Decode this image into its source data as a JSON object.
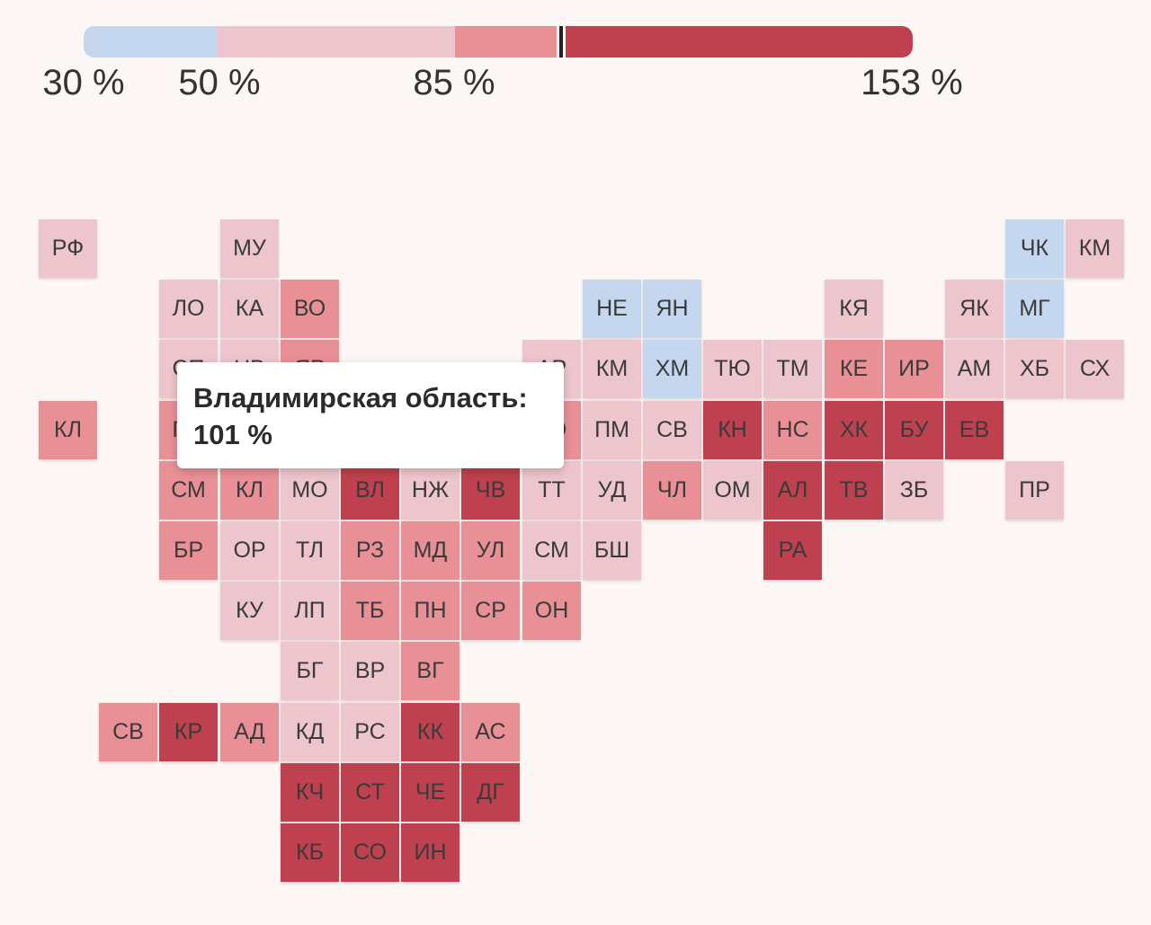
{
  "legend": {
    "labels": [
      "30 %",
      "50 %",
      "85 %",
      "153 %"
    ],
    "colors": [
      "#c4d7ee",
      "#edc5cc",
      "#e89096",
      "#bf404e"
    ]
  },
  "tooltip": {
    "region": "Владимирская область:",
    "value": "101 %"
  },
  "tiles": [
    {
      "abbr": "РФ",
      "row": 0,
      "col": 0,
      "level": 1
    },
    {
      "abbr": "МУ",
      "row": 0,
      "col": 3,
      "level": 1
    },
    {
      "abbr": "ЧК",
      "row": 0,
      "col": 16,
      "level": 0
    },
    {
      "abbr": "КМ",
      "row": 0,
      "col": 17,
      "level": 1
    },
    {
      "abbr": "ЛО",
      "row": 1,
      "col": 2,
      "level": 1
    },
    {
      "abbr": "КА",
      "row": 1,
      "col": 3,
      "level": 1
    },
    {
      "abbr": "ВО",
      "row": 1,
      "col": 4,
      "level": 2
    },
    {
      "abbr": "НЕ",
      "row": 1,
      "col": 9,
      "level": 0
    },
    {
      "abbr": "ЯН",
      "row": 1,
      "col": 10,
      "level": 0
    },
    {
      "abbr": "КЯ",
      "row": 1,
      "col": 13,
      "level": 1
    },
    {
      "abbr": "ЯК",
      "row": 1,
      "col": 15,
      "level": 1
    },
    {
      "abbr": "МГ",
      "row": 1,
      "col": 16,
      "level": 0
    },
    {
      "abbr": "СП",
      "row": 2,
      "col": 2,
      "level": 1
    },
    {
      "abbr": "НВ",
      "row": 2,
      "col": 3,
      "level": 1
    },
    {
      "abbr": "ЯР",
      "row": 2,
      "col": 4,
      "level": 2
    },
    {
      "abbr": "АР",
      "row": 2,
      "col": 8,
      "level": 1
    },
    {
      "abbr": "КМ",
      "row": 2,
      "col": 9,
      "level": 1
    },
    {
      "abbr": "ХМ",
      "row": 2,
      "col": 10,
      "level": 0
    },
    {
      "abbr": "ТЮ",
      "row": 2,
      "col": 11,
      "level": 1
    },
    {
      "abbr": "ТМ",
      "row": 2,
      "col": 12,
      "level": 1
    },
    {
      "abbr": "КЕ",
      "row": 2,
      "col": 13,
      "level": 2
    },
    {
      "abbr": "ИР",
      "row": 2,
      "col": 14,
      "level": 2
    },
    {
      "abbr": "АМ",
      "row": 2,
      "col": 15,
      "level": 1
    },
    {
      "abbr": "ХБ",
      "row": 2,
      "col": 16,
      "level": 1
    },
    {
      "abbr": "СХ",
      "row": 2,
      "col": 17,
      "level": 1
    },
    {
      "abbr": "КЛ",
      "row": 3,
      "col": 0,
      "level": 2
    },
    {
      "abbr": "ПС",
      "row": 3,
      "col": 2,
      "level": 2
    },
    {
      "abbr": "КО",
      "row": 3,
      "col": 8,
      "level": 2
    },
    {
      "abbr": "ПМ",
      "row": 3,
      "col": 9,
      "level": 1
    },
    {
      "abbr": "СВ",
      "row": 3,
      "col": 10,
      "level": 1
    },
    {
      "abbr": "КН",
      "row": 3,
      "col": 11,
      "level": 3
    },
    {
      "abbr": "НС",
      "row": 3,
      "col": 12,
      "level": 2
    },
    {
      "abbr": "ХК",
      "row": 3,
      "col": 13,
      "level": 3
    },
    {
      "abbr": "БУ",
      "row": 3,
      "col": 14,
      "level": 3
    },
    {
      "abbr": "ЕВ",
      "row": 3,
      "col": 15,
      "level": 3
    },
    {
      "abbr": "СМ",
      "row": 4,
      "col": 2,
      "level": 2
    },
    {
      "abbr": "КЛ",
      "row": 4,
      "col": 3,
      "level": 2
    },
    {
      "abbr": "МО",
      "row": 4,
      "col": 4,
      "level": 1
    },
    {
      "abbr": "ВЛ",
      "row": 4,
      "col": 5,
      "level": 3
    },
    {
      "abbr": "НЖ",
      "row": 4,
      "col": 6,
      "level": 1
    },
    {
      "abbr": "ЧВ",
      "row": 4,
      "col": 7,
      "level": 3
    },
    {
      "abbr": "ТТ",
      "row": 4,
      "col": 8,
      "level": 1
    },
    {
      "abbr": "УД",
      "row": 4,
      "col": 9,
      "level": 1
    },
    {
      "abbr": "ЧЛ",
      "row": 4,
      "col": 10,
      "level": 2
    },
    {
      "abbr": "ОМ",
      "row": 4,
      "col": 11,
      "level": 1
    },
    {
      "abbr": "АЛ",
      "row": 4,
      "col": 12,
      "level": 3
    },
    {
      "abbr": "ТВ",
      "row": 4,
      "col": 13,
      "level": 3
    },
    {
      "abbr": "ЗБ",
      "row": 4,
      "col": 14,
      "level": 1
    },
    {
      "abbr": "ПР",
      "row": 4,
      "col": 16,
      "level": 1
    },
    {
      "abbr": "БР",
      "row": 5,
      "col": 2,
      "level": 2
    },
    {
      "abbr": "ОР",
      "row": 5,
      "col": 3,
      "level": 1
    },
    {
      "abbr": "ТЛ",
      "row": 5,
      "col": 4,
      "level": 1
    },
    {
      "abbr": "РЗ",
      "row": 5,
      "col": 5,
      "level": 2
    },
    {
      "abbr": "МД",
      "row": 5,
      "col": 6,
      "level": 2
    },
    {
      "abbr": "УЛ",
      "row": 5,
      "col": 7,
      "level": 2
    },
    {
      "abbr": "СМ",
      "row": 5,
      "col": 8,
      "level": 1
    },
    {
      "abbr": "БШ",
      "row": 5,
      "col": 9,
      "level": 1
    },
    {
      "abbr": "РА",
      "row": 5,
      "col": 12,
      "level": 3
    },
    {
      "abbr": "КУ",
      "row": 6,
      "col": 3,
      "level": 1
    },
    {
      "abbr": "ЛП",
      "row": 6,
      "col": 4,
      "level": 1
    },
    {
      "abbr": "ТБ",
      "row": 6,
      "col": 5,
      "level": 2
    },
    {
      "abbr": "ПН",
      "row": 6,
      "col": 6,
      "level": 2
    },
    {
      "abbr": "СР",
      "row": 6,
      "col": 7,
      "level": 2
    },
    {
      "abbr": "ОН",
      "row": 6,
      "col": 8,
      "level": 2
    },
    {
      "abbr": "БГ",
      "row": 7,
      "col": 4,
      "level": 1
    },
    {
      "abbr": "ВР",
      "row": 7,
      "col": 5,
      "level": 1
    },
    {
      "abbr": "ВГ",
      "row": 7,
      "col": 6,
      "level": 2
    },
    {
      "abbr": "СВ",
      "row": 8,
      "col": 1,
      "level": 2
    },
    {
      "abbr": "КР",
      "row": 8,
      "col": 2,
      "level": 3
    },
    {
      "abbr": "АД",
      "row": 8,
      "col": 3,
      "level": 2
    },
    {
      "abbr": "КД",
      "row": 8,
      "col": 4,
      "level": 1
    },
    {
      "abbr": "РС",
      "row": 8,
      "col": 5,
      "level": 1
    },
    {
      "abbr": "КК",
      "row": 8,
      "col": 6,
      "level": 3
    },
    {
      "abbr": "АС",
      "row": 8,
      "col": 7,
      "level": 2
    },
    {
      "abbr": "КЧ",
      "row": 9,
      "col": 4,
      "level": 3
    },
    {
      "abbr": "СТ",
      "row": 9,
      "col": 5,
      "level": 3
    },
    {
      "abbr": "ЧЕ",
      "row": 9,
      "col": 6,
      "level": 3
    },
    {
      "abbr": "ДГ",
      "row": 9,
      "col": 7,
      "level": 3
    },
    {
      "abbr": "КБ",
      "row": 10,
      "col": 4,
      "level": 3
    },
    {
      "abbr": "СО",
      "row": 10,
      "col": 5,
      "level": 3
    },
    {
      "abbr": "ИН",
      "row": 10,
      "col": 6,
      "level": 3
    }
  ]
}
